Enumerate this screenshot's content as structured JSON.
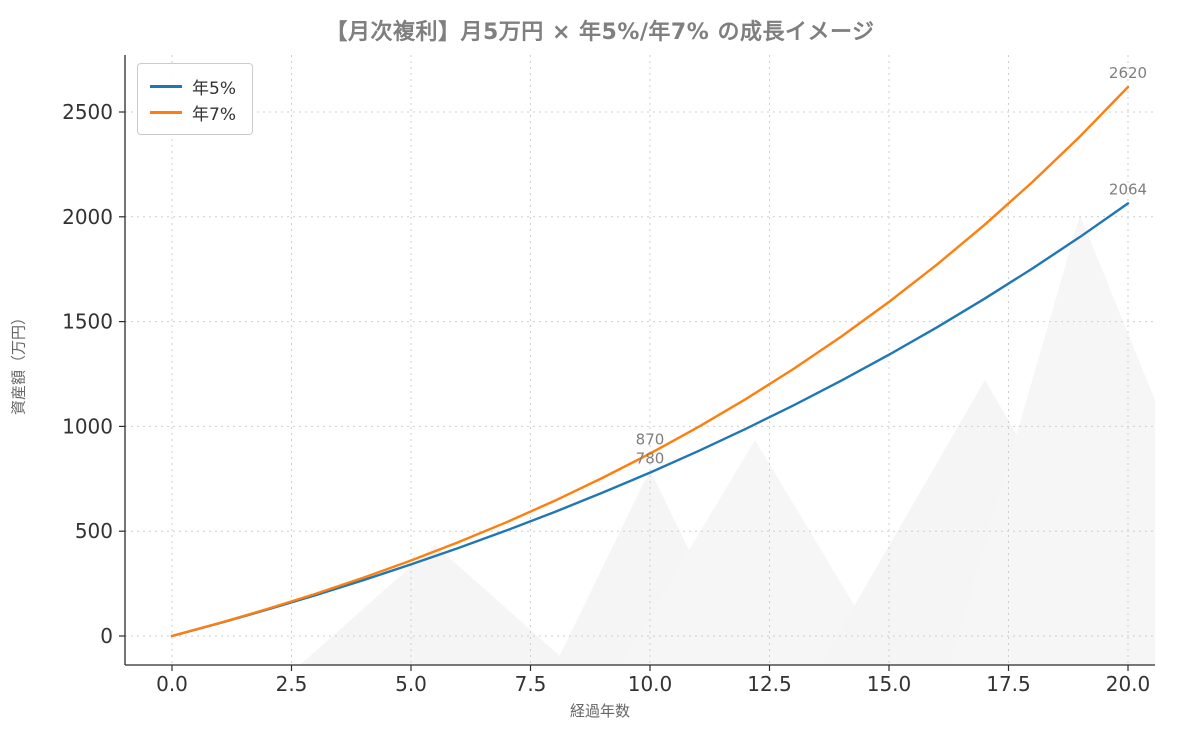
{
  "chart_data": {
    "type": "line",
    "title": "【月次複利】月5万円 × 年5%/年7% の成長イメージ",
    "xlabel": "経過年数",
    "ylabel": "資産額（万円）",
    "grid": true,
    "legend_position": "upper left",
    "xlim": [
      0,
      20
    ],
    "ylim": [
      0,
      2500
    ],
    "x": [
      0,
      1,
      2,
      3,
      4,
      5,
      6,
      7,
      8,
      9,
      10,
      11,
      12,
      13,
      14,
      15,
      16,
      17,
      18,
      19,
      20
    ],
    "series": [
      {
        "name": "年5%",
        "color": "#1f77b4",
        "values": [
          0,
          61.6,
          126.4,
          194.6,
          266.2,
          341.4,
          420.5,
          503.7,
          591.2,
          683.0,
          779.7,
          881.2,
          987.9,
          1100.2,
          1218.1,
          1342.1,
          1472.4,
          1609.4,
          1753.4,
          1904.7,
          2063.7
        ]
      },
      {
        "name": "年7%",
        "color": "#ff7f0e",
        "values": [
          0,
          62.3,
          129.2,
          200.8,
          277.6,
          360.0,
          448.3,
          543.1,
          644.7,
          753.6,
          870.3,
          995.6,
          1129.9,
          1273.9,
          1428.3,
          1593.8,
          1771.4,
          1961.7,
          2165.8,
          2384.7,
          2619.4
        ]
      }
    ],
    "x_ticks": {
      "values": [
        0,
        2.5,
        5,
        7.5,
        10,
        12.5,
        15,
        17.5,
        20
      ],
      "labels": [
        "0.0",
        "2.5",
        "5.0",
        "7.5",
        "10.0",
        "12.5",
        "15.0",
        "17.5",
        "20.0"
      ]
    },
    "y_ticks": {
      "values": [
        0,
        500,
        1000,
        1500,
        2000,
        2500
      ],
      "labels": [
        "0",
        "500",
        "1000",
        "1500",
        "2000",
        "2500"
      ]
    },
    "annotations": [
      {
        "text": "870",
        "x": 10,
        "y": 870.3
      },
      {
        "text": "780",
        "x": 10,
        "y": 779.7
      },
      {
        "text": "2620",
        "x": 20,
        "y": 2619.4
      },
      {
        "text": "2064",
        "x": 20,
        "y": 2063.7
      }
    ],
    "annotation_color": "#7f7f7f"
  }
}
